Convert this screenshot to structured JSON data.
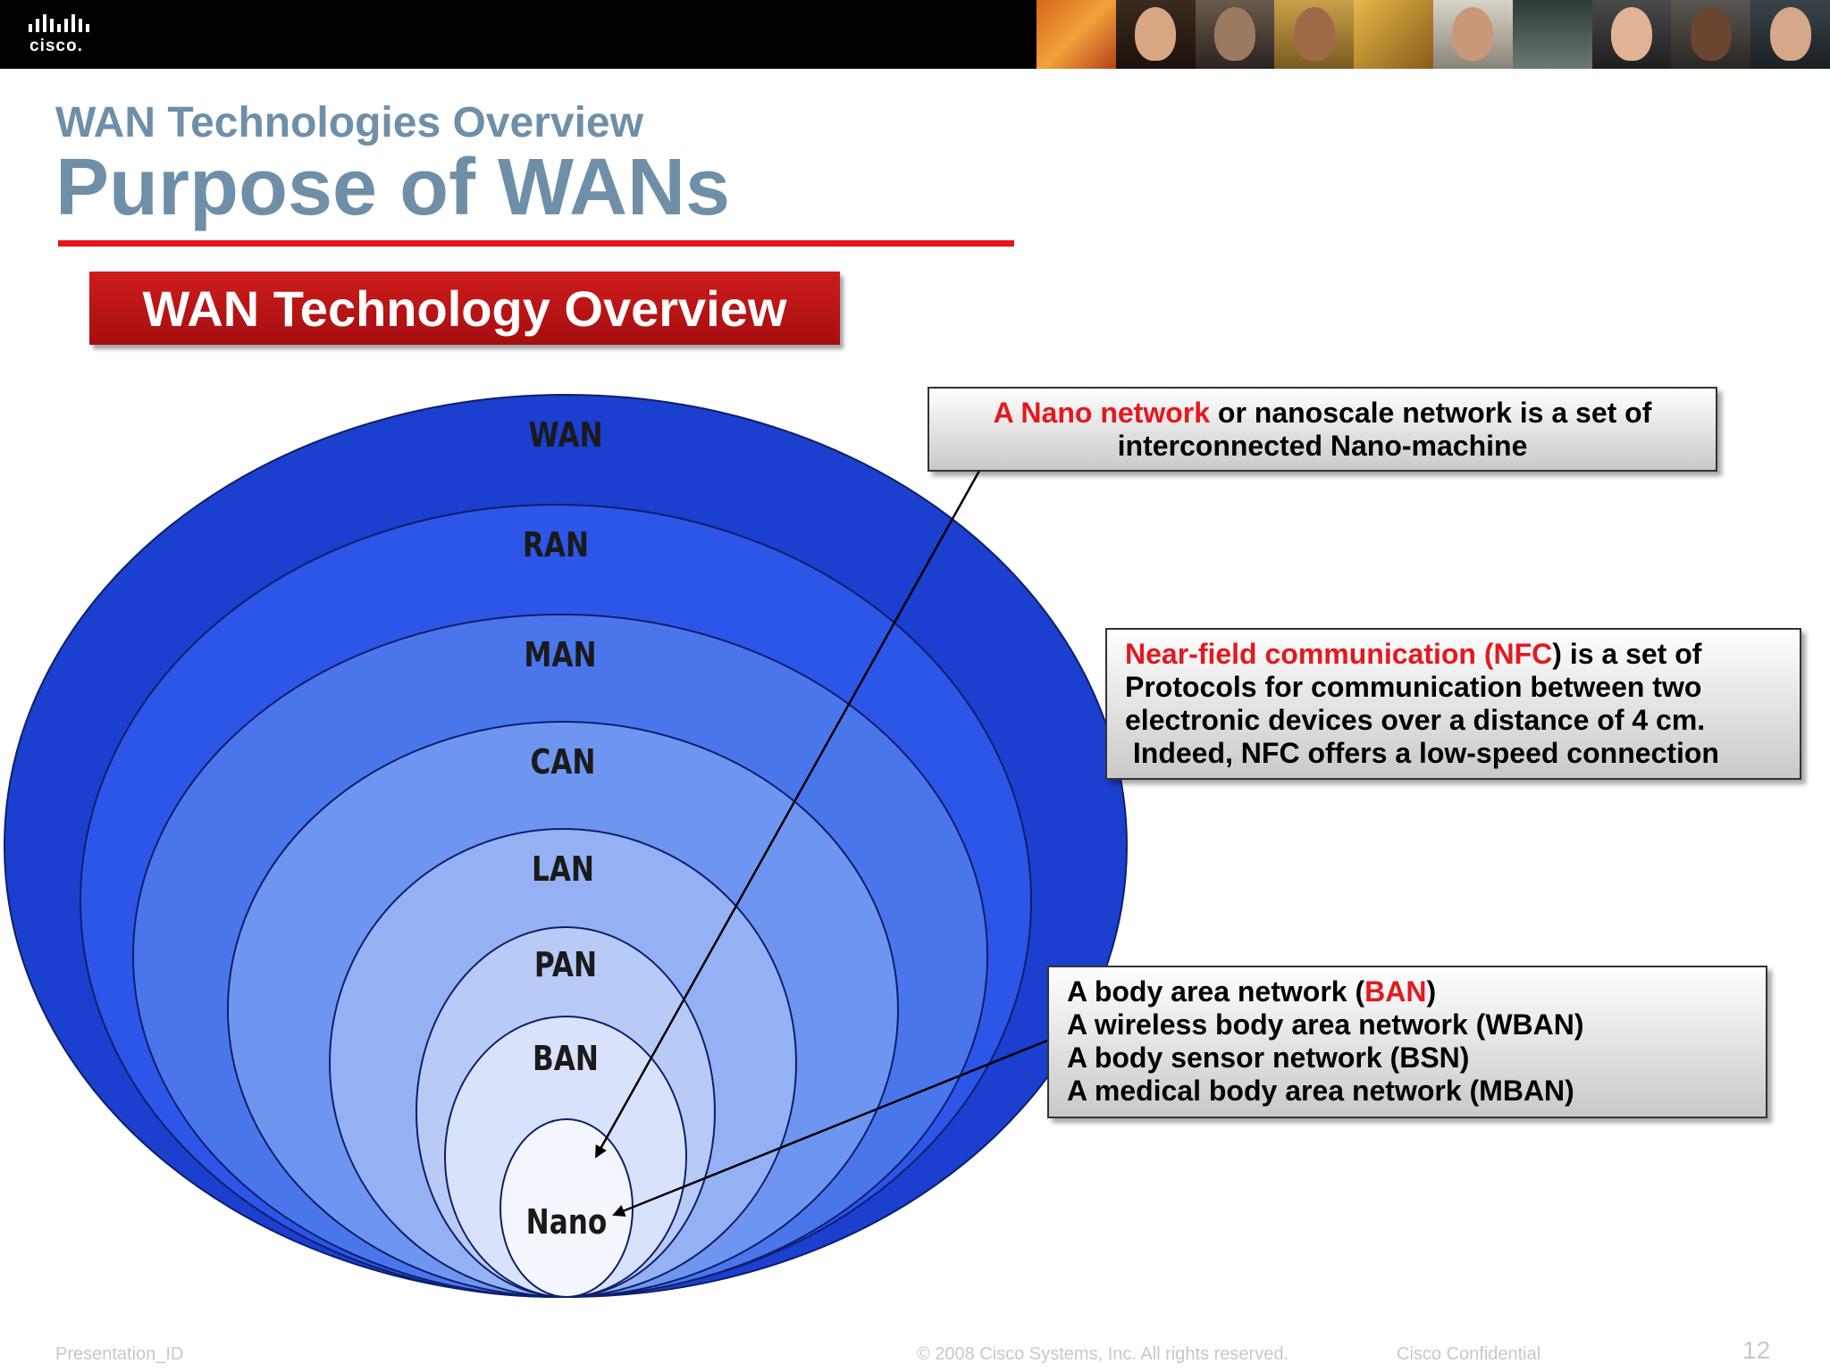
{
  "header": {
    "logo_text": "cisco.",
    "icons": [
      "cisco-bridge-logo-icon"
    ]
  },
  "slide": {
    "subtitle": "WAN Technologies Overview",
    "title": "Purpose of WANs",
    "section_banner": "WAN Technology Overview"
  },
  "diagram": {
    "levels": [
      "WAN",
      "RAN",
      "MAN",
      "CAN",
      "LAN",
      "PAN",
      "BAN",
      "Nano"
    ],
    "colors": [
      "#1b3fcf",
      "#2c56e8",
      "#4a76ec",
      "#6e95ef",
      "#94b2f3",
      "#b8cbf7",
      "#d8e3fb",
      "#f3f6fd"
    ],
    "outline_color": "#0d1f6b"
  },
  "callouts": {
    "nano": {
      "highlight": "A Nano network",
      "rest_line1": " or nanoscale network is a set of",
      "line2": "interconnected Nano-machine"
    },
    "nfc": {
      "highlight": "Near-field communication (NFC",
      "rest_line1": ") is a set of",
      "line2": "Protocols for communication  between two",
      "line3": "electronic devices over a distance of 4 cm.",
      "line4": " Indeed, NFC offers a low-speed connection"
    },
    "ban": {
      "line1_pre": "A body area network (",
      "line1_highlight": "BAN",
      "line1_post": ")",
      "line2": "A wireless body area network (WBAN)",
      "line3": "A body sensor network (BSN)",
      "line4": "A medical body area network (MBAN)"
    }
  },
  "footer": {
    "presentation_id": "Presentation_ID",
    "copyright": "© 2008 Cisco Systems, Inc. All rights reserved.",
    "confidential": "Cisco Confidential",
    "page_number": "12"
  },
  "colors": {
    "accent_red": "#e5181e",
    "title_gray": "#6f8fa8",
    "banner_red": "#b81414"
  }
}
